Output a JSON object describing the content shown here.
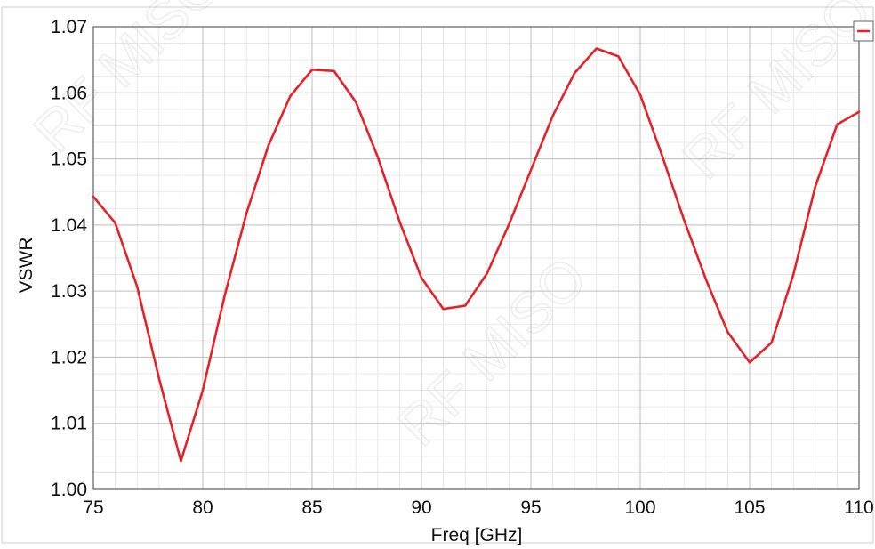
{
  "chart_data": {
    "type": "line",
    "title": "",
    "xlabel": "Freq [GHz]",
    "ylabel": "VSWR",
    "xlim": [
      75,
      110
    ],
    "ylim": [
      1.0,
      1.07
    ],
    "x_ticks": [
      "75",
      "80",
      "85",
      "90",
      "95",
      "100",
      "105",
      "110"
    ],
    "y_ticks": [
      "1.00",
      "1.01",
      "1.02",
      "1.03",
      "1.04",
      "1.05",
      "1.06",
      "1.07"
    ],
    "grid": true,
    "legend": "top-right",
    "series": [
      {
        "color": "#e8202a",
        "x": [
          75,
          76,
          77,
          78,
          79,
          80,
          81,
          82,
          83,
          84,
          85,
          86,
          87,
          88,
          89,
          90,
          91,
          92,
          93,
          94,
          95,
          96,
          97,
          98,
          99,
          100,
          101,
          102,
          103,
          104,
          105,
          106,
          107,
          108,
          109,
          110
        ],
        "values": [
          1.0443,
          1.0403,
          1.0307,
          1.0168,
          1.0043,
          1.015,
          1.0293,
          1.0418,
          1.052,
          1.0595,
          1.0635,
          1.0633,
          1.0586,
          1.0503,
          1.0405,
          1.032,
          1.0273,
          1.0278,
          1.0327,
          1.0401,
          1.0483,
          1.0565,
          1.063,
          1.0667,
          1.0655,
          1.0597,
          1.0505,
          1.0408,
          1.0318,
          1.0238,
          1.0192,
          1.0222,
          1.0325,
          1.0458,
          1.0552,
          1.0571
        ]
      }
    ]
  }
}
